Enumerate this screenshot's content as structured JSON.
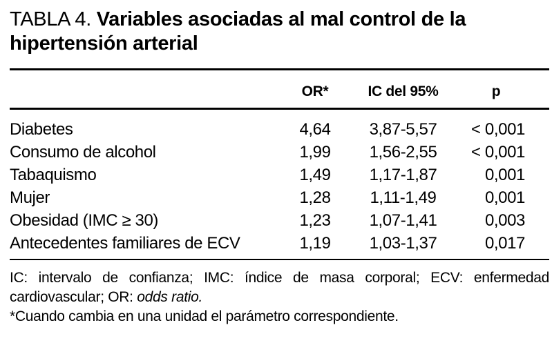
{
  "page": {
    "background": "#ffffff",
    "text_color": "#000000",
    "rule_color": "#000000"
  },
  "title": {
    "label": "TABLA 4.",
    "bold_text": "Variables asociadas al mal control de la hipertensión arterial"
  },
  "table": {
    "headers": {
      "or": "OR*",
      "ic": "IC del 95%",
      "p": "p"
    },
    "rows": [
      {
        "label": "Diabetes",
        "or": "4,64",
        "ic": "3,87-5,57",
        "p": "< 0,001"
      },
      {
        "label": "Consumo de alcohol",
        "or": "1,99",
        "ic": "1,56-2,55",
        "p": "< 0,001"
      },
      {
        "label": "Tabaquismo",
        "or": "1,49",
        "ic": "1,17-1,87",
        "p": "0,001"
      },
      {
        "label": "Mujer",
        "or": "1,28",
        "ic": "1,11-1,49",
        "p": "0,001"
      },
      {
        "label": "Obesidad (IMC ≥ 30)",
        "or": "1,23",
        "ic": "1,07-1,41",
        "p": "0,003"
      },
      {
        "label": "Antecedentes familiares de ECV",
        "or": "1,19",
        "ic": "1,03-1,37",
        "p": "0,017"
      }
    ]
  },
  "footnotes": {
    "abbrev_line1": "IC: intervalo de confianza; IMC: índice de masa corporal; ECV: enfermedad",
    "abbrev_line2_regular": "cardiovascular; OR:",
    "abbrev_line2_italic": "odds ratio.",
    "asterisk_note": "*Cuando cambia en una unidad el parámetro correspondiente."
  }
}
